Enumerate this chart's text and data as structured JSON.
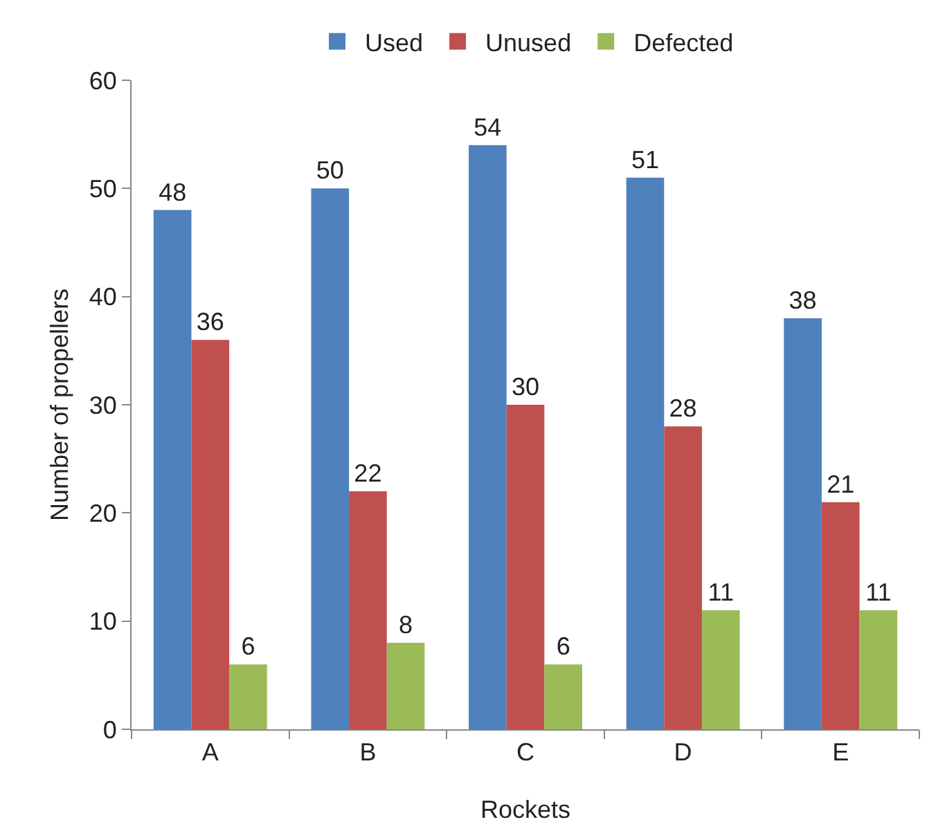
{
  "chart_data": {
    "type": "bar",
    "xlabel": "Rockets",
    "ylabel": "Number of propellers",
    "categories": [
      "A",
      "B",
      "C",
      "D",
      "E"
    ],
    "series": [
      {
        "name": "Used",
        "color": "#4f81bd",
        "values": [
          48,
          50,
          54,
          51,
          38
        ]
      },
      {
        "name": "Unused",
        "color": "#c0504d",
        "values": [
          36,
          22,
          30,
          28,
          21
        ]
      },
      {
        "name": "Defected",
        "color": "#9bbb59",
        "values": [
          6,
          8,
          6,
          11,
          11
        ]
      }
    ],
    "ylim": [
      0,
      60
    ],
    "yticks": [
      0,
      10,
      20,
      30,
      40,
      50,
      60
    ],
    "grid": false,
    "legend": "top",
    "data_labels": true
  }
}
